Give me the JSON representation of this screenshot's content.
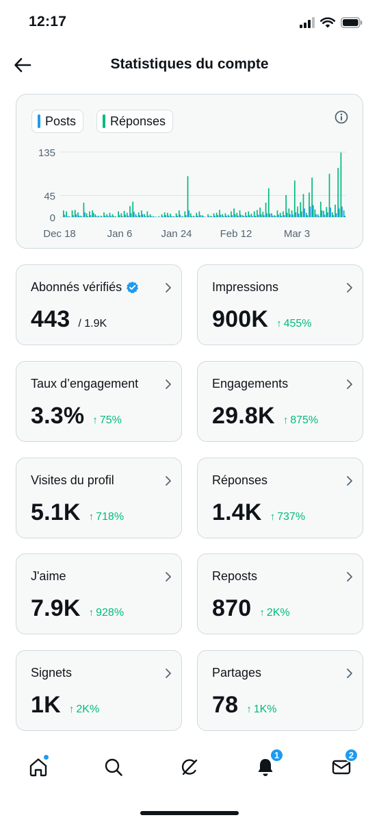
{
  "status_bar": {
    "time": "12:17"
  },
  "header": {
    "title": "Statistiques du compte"
  },
  "chart": {
    "legend": [
      {
        "label": "Posts",
        "color": "#1d9bf0"
      },
      {
        "label": "Réponses",
        "color": "#00ba7c"
      }
    ],
    "info_icon": "info-icon"
  },
  "chart_data": {
    "type": "bar",
    "ylim": [
      0,
      135
    ],
    "y_ticks": [
      "135",
      "45",
      "0"
    ],
    "x_tick_labels": [
      "Dec 18",
      "Jan 6",
      "Jan 24",
      "Feb 12",
      "Mar 3"
    ],
    "series": [
      {
        "name": "Posts",
        "color": "#1d9bf0",
        "values": [
          5,
          2,
          0,
          4,
          6,
          3,
          1,
          10,
          2,
          4,
          9,
          2,
          1,
          1,
          3,
          2,
          3,
          2,
          0,
          4,
          2,
          5,
          3,
          8,
          11,
          2,
          4,
          6,
          2,
          3,
          2,
          1,
          0,
          0,
          2,
          4,
          3,
          2,
          1,
          3,
          5,
          1,
          4,
          14,
          2,
          1,
          3,
          4,
          2,
          0,
          2,
          1,
          3,
          4,
          5,
          2,
          3,
          2,
          4,
          6,
          3,
          5,
          2,
          3,
          4,
          2,
          3,
          5,
          6,
          4,
          8,
          7,
          3,
          2,
          5,
          3,
          4,
          9,
          6,
          5,
          10,
          7,
          12,
          18,
          4,
          22,
          25,
          6,
          2,
          14,
          5,
          10,
          20,
          4,
          8,
          18,
          22,
          3
        ]
      },
      {
        "name": "Réponses",
        "color": "#00ba7c",
        "values": [
          14,
          12,
          2,
          14,
          15,
          10,
          3,
          30,
          8,
          12,
          14,
          6,
          3,
          3,
          10,
          6,
          9,
          6,
          2,
          12,
          8,
          13,
          9,
          23,
          32,
          6,
          10,
          14,
          6,
          12,
          6,
          2,
          1,
          2,
          6,
          10,
          9,
          7,
          2,
          8,
          14,
          2,
          12,
          85,
          8,
          3,
          9,
          12,
          4,
          1,
          6,
          3,
          8,
          9,
          15,
          6,
          8,
          5,
          12,
          18,
          9,
          14,
          4,
          10,
          12,
          7,
          12,
          15,
          20,
          11,
          30,
          60,
          8,
          4,
          14,
          9,
          12,
          46,
          18,
          14,
          76,
          22,
          31,
          48,
          9,
          51,
          82,
          16,
          6,
          32,
          13,
          21,
          90,
          10,
          26,
          102,
          134,
          14
        ]
      }
    ]
  },
  "stats": [
    {
      "label": "Abonnés vérifiés",
      "verified": true,
      "value": "443",
      "sub": "/ 1.9K",
      "delta": ""
    },
    {
      "label": "Impressions",
      "value": "900K",
      "sub": "",
      "delta": "455%"
    },
    {
      "label": "Taux d’engagement",
      "value": "3.3%",
      "sub": "",
      "delta": "75%"
    },
    {
      "label": "Engagements",
      "value": "29.8K",
      "sub": "",
      "delta": "875%"
    },
    {
      "label": "Visites du profil",
      "value": "5.1K",
      "sub": "",
      "delta": "718%"
    },
    {
      "label": "Réponses",
      "value": "1.4K",
      "sub": "",
      "delta": "737%"
    },
    {
      "label": "J'aime",
      "value": "7.9K",
      "sub": "",
      "delta": "928%"
    },
    {
      "label": "Reposts",
      "value": "870",
      "sub": "",
      "delta": "2K%"
    },
    {
      "label": "Signets",
      "value": "1K",
      "sub": "",
      "delta": "2K%"
    },
    {
      "label": "Partages",
      "value": "78",
      "sub": "",
      "delta": "1K%"
    }
  ],
  "tab_bar": {
    "tabs": [
      {
        "icon": "home-icon",
        "dot": true
      },
      {
        "icon": "search-icon"
      },
      {
        "icon": "grok-icon"
      },
      {
        "icon": "bell-icon",
        "badge": "1"
      },
      {
        "icon": "mail-icon",
        "badge": "2"
      }
    ]
  },
  "colors": {
    "accent": "#1d9bf0",
    "positive": "#00ba7c",
    "text": "#0f1419",
    "border": "#cfd9de",
    "card_bg": "#f7f9f9"
  }
}
